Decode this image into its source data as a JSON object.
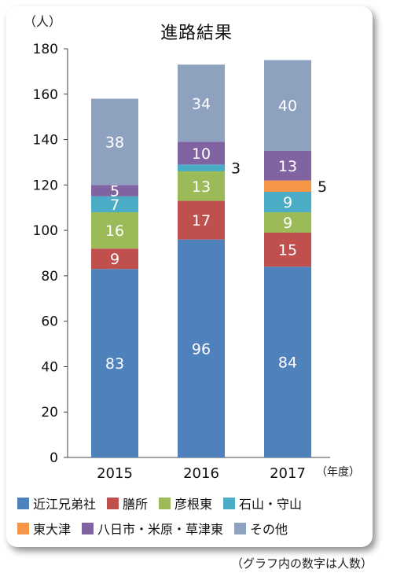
{
  "title": "進路結果",
  "y_unit": "（人）",
  "x_unit": "（年度）",
  "note": "（グラフ内の数字は人数）",
  "chart_data": {
    "type": "bar",
    "stacked": true,
    "title": "進路結果",
    "xlabel": "",
    "ylabel": "（人）",
    "ylim": [
      0,
      180
    ],
    "yticks": [
      0,
      20,
      40,
      60,
      80,
      100,
      120,
      140,
      160,
      180
    ],
    "categories": [
      "2015",
      "2016",
      "2017"
    ],
    "grid": false,
    "series": [
      {
        "name": "近江兄弟社",
        "color": "#4F81BD",
        "values": [
          83,
          96,
          84
        ]
      },
      {
        "name": "膳所",
        "color": "#C0504D",
        "values": [
          9,
          17,
          15
        ]
      },
      {
        "name": "彦根東",
        "color": "#9BBB59",
        "values": [
          16,
          13,
          9
        ]
      },
      {
        "name": "石山・守山",
        "color": "#4BACC6",
        "values": [
          7,
          3,
          9
        ]
      },
      {
        "name": "東大津",
        "color": "#F79646",
        "values": [
          0,
          0,
          5
        ]
      },
      {
        "name": "八日市・米原・草津東",
        "color": "#8064A2",
        "values": [
          5,
          10,
          13
        ]
      },
      {
        "name": "その他",
        "color": "#8EA2C0",
        "values": [
          38,
          34,
          40
        ]
      }
    ]
  },
  "legend": {
    "rows": [
      [
        0,
        1,
        2,
        3
      ],
      [
        4,
        5,
        6
      ]
    ]
  }
}
